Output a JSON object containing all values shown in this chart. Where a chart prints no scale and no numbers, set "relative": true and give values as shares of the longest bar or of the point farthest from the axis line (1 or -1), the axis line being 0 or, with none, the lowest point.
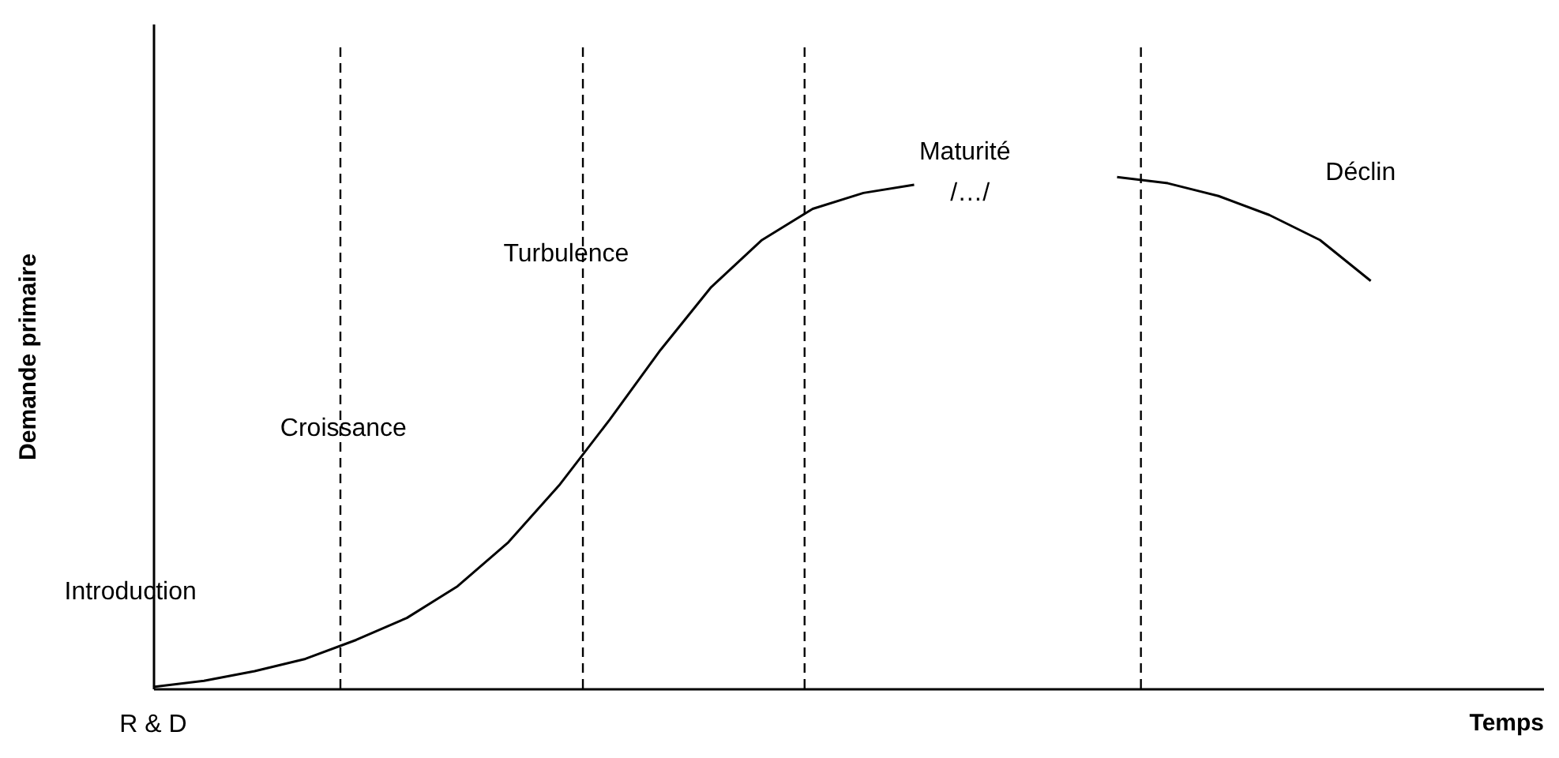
{
  "chart_data": {
    "type": "line",
    "relative": true,
    "xlabel": "Temps",
    "ylabel": "Demande primaire",
    "categories": [
      null,
      null,
      null,
      null,
      null,
      null,
      null,
      null,
      null,
      null,
      null,
      null,
      null,
      null,
      null,
      null,
      null,
      null,
      null,
      null,
      null,
      null,
      null,
      null,
      null
    ],
    "series": [
      {
        "color": "#000000",
        "values": [
          0.003,
          0.015,
          0.034,
          0.058,
          0.095,
          0.138,
          0.2,
          0.286,
          0.397,
          0.526,
          0.662,
          0.785,
          0.877,
          0.938,
          0.969,
          0.985,
          null,
          null,
          null,
          null,
          null,
          null,
          null,
          null,
          null
        ]
      },
      {
        "color": "#000000",
        "values": [
          null,
          null,
          null,
          null,
          null,
          null,
          null,
          null,
          null,
          null,
          null,
          null,
          null,
          null,
          null,
          null,
          null,
          null,
          null,
          1,
          0.988,
          0.963,
          0.926,
          0.877,
          0.797
        ]
      }
    ],
    "annotations": [
      "R & D",
      "Introduction",
      "Croissance",
      "Turbulence",
      "Maturité",
      "/…/",
      "Déclin"
    ],
    "marker": "none",
    "line_style": "solid"
  }
}
